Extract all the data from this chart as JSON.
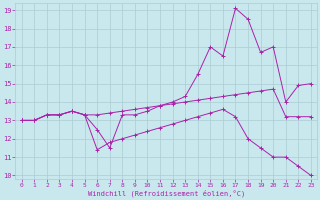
{
  "xlabel": "Windchill (Refroidissement éolien,°C)",
  "background_color": "#c8e8ee",
  "grid_color": "#aaccd4",
  "line_color": "#aa22aa",
  "xlim": [
    -0.5,
    23.5
  ],
  "ylim": [
    9.8,
    19.4
  ],
  "yticks": [
    10,
    11,
    12,
    13,
    14,
    15,
    16,
    17,
    18,
    19
  ],
  "xticks": [
    0,
    1,
    2,
    3,
    4,
    5,
    6,
    7,
    8,
    9,
    10,
    11,
    12,
    13,
    14,
    15,
    16,
    17,
    18,
    19,
    20,
    21,
    22,
    23
  ],
  "line1_x": [
    0,
    1,
    2,
    3,
    4,
    5,
    6,
    7,
    8,
    9,
    10,
    11,
    12,
    13,
    14,
    15,
    16,
    17,
    18,
    19,
    20,
    21,
    22,
    23
  ],
  "line1_y": [
    13.0,
    13.0,
    13.3,
    13.3,
    13.5,
    13.3,
    12.5,
    11.5,
    13.3,
    13.3,
    13.5,
    13.8,
    14.0,
    14.3,
    15.5,
    17.0,
    16.5,
    19.1,
    18.5,
    16.7,
    17.0,
    14.0,
    14.9,
    15.0
  ],
  "line2_x": [
    0,
    1,
    2,
    3,
    4,
    5,
    6,
    7,
    8,
    9,
    10,
    11,
    12,
    13,
    14,
    15,
    16,
    17,
    18,
    19,
    20,
    21,
    22,
    23
  ],
  "line2_y": [
    13.0,
    13.0,
    13.3,
    13.3,
    13.5,
    13.3,
    13.3,
    13.4,
    13.5,
    13.6,
    13.7,
    13.8,
    13.9,
    14.0,
    14.1,
    14.2,
    14.3,
    14.4,
    14.5,
    14.6,
    14.7,
    13.2,
    13.2,
    13.2
  ],
  "line3_x": [
    0,
    1,
    2,
    3,
    4,
    5,
    6,
    7,
    8,
    9,
    10,
    11,
    12,
    13,
    14,
    15,
    16,
    17,
    18,
    19,
    20,
    21,
    22,
    23
  ],
  "line3_y": [
    13.0,
    13.0,
    13.3,
    13.3,
    13.5,
    13.3,
    11.4,
    11.8,
    12.0,
    12.2,
    12.4,
    12.6,
    12.8,
    13.0,
    13.2,
    13.4,
    13.6,
    13.2,
    12.0,
    11.5,
    11.0,
    11.0,
    10.5,
    10.0
  ]
}
